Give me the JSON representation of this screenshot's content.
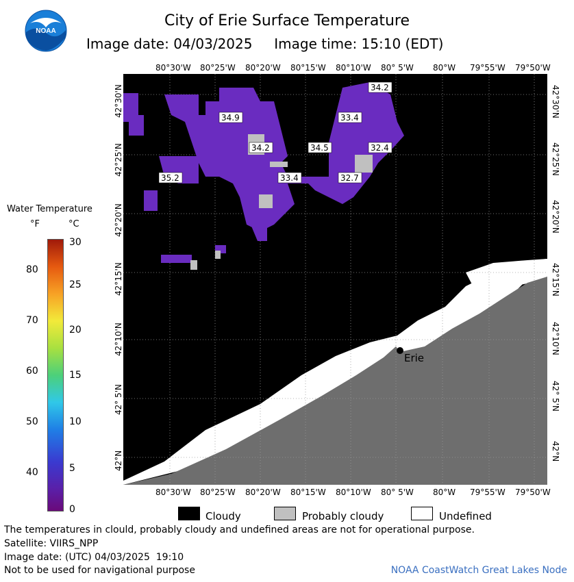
{
  "header": {
    "title": "City of Erie Surface Temperature",
    "image_date_label": "Image date: 04/03/2025",
    "image_time_label": "Image time: 15:10 (EDT)"
  },
  "logo": {
    "text": "NOAA"
  },
  "map": {
    "lon_labels": [
      "80°30'W",
      "80°25'W",
      "80°20'W",
      "80°15'W",
      "80°10'W",
      "80° 5'W",
      "80°W",
      "79°55'W",
      "79°50'W"
    ],
    "lat_labels": [
      "42°30'N",
      "42°25'N",
      "42°20'N",
      "42°15'N",
      "42°10'N",
      "42° 5'N",
      "42°N"
    ],
    "temperature_labels": [
      "34.2",
      "34.9",
      "33.4",
      "34.2",
      "34.5",
      "32.4",
      "35.2",
      "33.4",
      "32.7"
    ],
    "city_label": "Erie",
    "colors": {
      "cloud": "#000000",
      "probably_cloudy": "#c0c0c0",
      "undefined": "#ffffff",
      "land": "#6e6e6e",
      "water_purple": "#6a2cc0"
    }
  },
  "legend": {
    "title": "Water Temperature",
    "unit_f": "°F",
    "unit_c": "°C",
    "f_ticks": [
      "80",
      "70",
      "60",
      "50",
      "40"
    ],
    "c_ticks": [
      "30",
      "25",
      "20",
      "15",
      "10",
      "5",
      "0"
    ],
    "key": {
      "cloudy": "Cloudy",
      "probably_cloudy": "Probably cloudy",
      "undefined": "Undefined"
    }
  },
  "footer": {
    "line1": "The temperatures in clould, probably cloudy and undefined areas are not for operational purpose.",
    "line2": "Satellite: VIIRS_NPP",
    "line3": "Image date: (UTC) 04/03/2025  19:10",
    "line4": "Not to be used for navigational purpose",
    "credit": "NOAA CoastWatch Great Lakes Node"
  }
}
